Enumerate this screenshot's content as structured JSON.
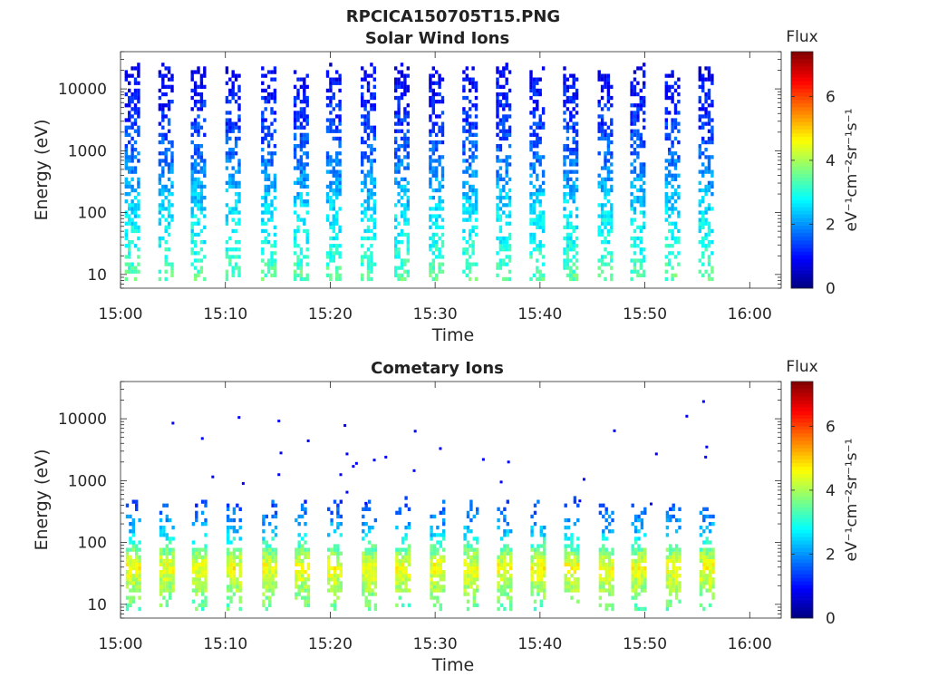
{
  "figure": {
    "title": "RPCICA150705T15.PNG"
  },
  "chart_data": [
    {
      "type": "heatmap",
      "title": "Solar Wind Ions",
      "xlabel": "Time",
      "ylabel": "Energy (eV)",
      "yscale": "log",
      "ylim": [
        6,
        40000
      ],
      "xlim": [
        "15:00",
        "16:03"
      ],
      "xticks": [
        "15:00",
        "15:10",
        "15:20",
        "15:30",
        "15:40",
        "15:50",
        "16:00"
      ],
      "yticks": [
        "10",
        "100",
        "1000",
        "10000"
      ],
      "colorbar": {
        "label": "Flux",
        "unit": "eV⁻¹cm⁻²sr⁻¹s⁻¹",
        "range": [
          0,
          7.4
        ],
        "ticks": [
          "0",
          "2",
          "4",
          "6"
        ],
        "colormap": "jet"
      },
      "grid": false,
      "burst_minutes": [
        1.2,
        4.4,
        7.5,
        10.8,
        14.2,
        17.3,
        20.4,
        23.7,
        26.9,
        30.2,
        33.4,
        36.6,
        39.8,
        43.0,
        46.3,
        49.4,
        52.7,
        55.9
      ],
      "burst_width_min": 1.6,
      "energy_range_eV": [
        8,
        20000
      ],
      "flux_profile": [
        {
          "energy_eV": 10,
          "flux": 3.4
        },
        {
          "energy_eV": 30,
          "flux": 2.9
        },
        {
          "energy_eV": 100,
          "flux": 2.6
        },
        {
          "energy_eV": 300,
          "flux": 2.1
        },
        {
          "energy_eV": 1000,
          "flux": 1.6
        },
        {
          "energy_eV": 3000,
          "flux": 1.3
        },
        {
          "energy_eV": 10000,
          "flux": 1.0
        },
        {
          "energy_eV": 20000,
          "flux": 0.8
        }
      ]
    },
    {
      "type": "heatmap",
      "title": "Cometary Ions",
      "xlabel": "Time",
      "ylabel": "Energy (eV)",
      "yscale": "log",
      "ylim": [
        6,
        40000
      ],
      "xlim": [
        "15:00",
        "16:03"
      ],
      "xticks": [
        "15:00",
        "15:10",
        "15:20",
        "15:30",
        "15:40",
        "15:50",
        "16:00"
      ],
      "yticks": [
        "10",
        "100",
        "1000",
        "10000"
      ],
      "colorbar": {
        "label": "Flux",
        "unit": "eV⁻¹cm⁻²sr⁻¹s⁻¹",
        "range": [
          0,
          7.4
        ],
        "ticks": [
          "0",
          "2",
          "4",
          "6"
        ],
        "colormap": "jet"
      },
      "grid": false,
      "burst_minutes": [
        1.2,
        4.4,
        7.5,
        10.8,
        14.2,
        17.3,
        20.4,
        23.7,
        26.9,
        30.2,
        33.4,
        36.6,
        39.8,
        43.0,
        46.3,
        49.4,
        52.7,
        55.9
      ],
      "burst_width_min": 1.4,
      "energy_range_eV": [
        8,
        400
      ],
      "peak_energy_eV": 40,
      "flux_profile": [
        {
          "energy_eV": 8,
          "flux": 3.4
        },
        {
          "energy_eV": 20,
          "flux": 4.0
        },
        {
          "energy_eV": 40,
          "flux": 4.6
        },
        {
          "energy_eV": 80,
          "flux": 3.5
        },
        {
          "energy_eV": 150,
          "flux": 2.3
        },
        {
          "energy_eV": 400,
          "flux": 1.5
        }
      ],
      "sparse_points": [
        {
          "minute": 5.0,
          "energy_eV": 8500
        },
        {
          "minute": 7.8,
          "energy_eV": 4800
        },
        {
          "minute": 8.8,
          "energy_eV": 1150
        },
        {
          "minute": 11.3,
          "energy_eV": 10500
        },
        {
          "minute": 11.7,
          "energy_eV": 900
        },
        {
          "minute": 15.1,
          "energy_eV": 9200
        },
        {
          "minute": 15.3,
          "energy_eV": 2800
        },
        {
          "minute": 15.1,
          "energy_eV": 1250
        },
        {
          "minute": 17.9,
          "energy_eV": 4400
        },
        {
          "minute": 21.4,
          "energy_eV": 7800
        },
        {
          "minute": 21.6,
          "energy_eV": 2700
        },
        {
          "minute": 21.0,
          "energy_eV": 1250
        },
        {
          "minute": 22.2,
          "energy_eV": 1700
        },
        {
          "minute": 22.5,
          "energy_eV": 1900
        },
        {
          "minute": 21.6,
          "energy_eV": 650
        },
        {
          "minute": 23.4,
          "energy_eV": 430
        },
        {
          "minute": 24.2,
          "energy_eV": 2150
        },
        {
          "minute": 25.3,
          "energy_eV": 2400
        },
        {
          "minute": 28.1,
          "energy_eV": 6300
        },
        {
          "minute": 28.0,
          "energy_eV": 1450
        },
        {
          "minute": 30.5,
          "energy_eV": 3300
        },
        {
          "minute": 34.6,
          "energy_eV": 2200
        },
        {
          "minute": 36.3,
          "energy_eV": 950
        },
        {
          "minute": 37.0,
          "energy_eV": 2000
        },
        {
          "minute": 44.2,
          "energy_eV": 1050
        },
        {
          "minute": 43.8,
          "energy_eV": 470
        },
        {
          "minute": 47.1,
          "energy_eV": 6400
        },
        {
          "minute": 51.1,
          "energy_eV": 2700
        },
        {
          "minute": 54.0,
          "energy_eV": 11000
        },
        {
          "minute": 55.6,
          "energy_eV": 19000
        },
        {
          "minute": 55.9,
          "energy_eV": 3500
        },
        {
          "minute": 55.8,
          "energy_eV": 2400
        },
        {
          "minute": 50.6,
          "energy_eV": 420
        }
      ]
    }
  ]
}
